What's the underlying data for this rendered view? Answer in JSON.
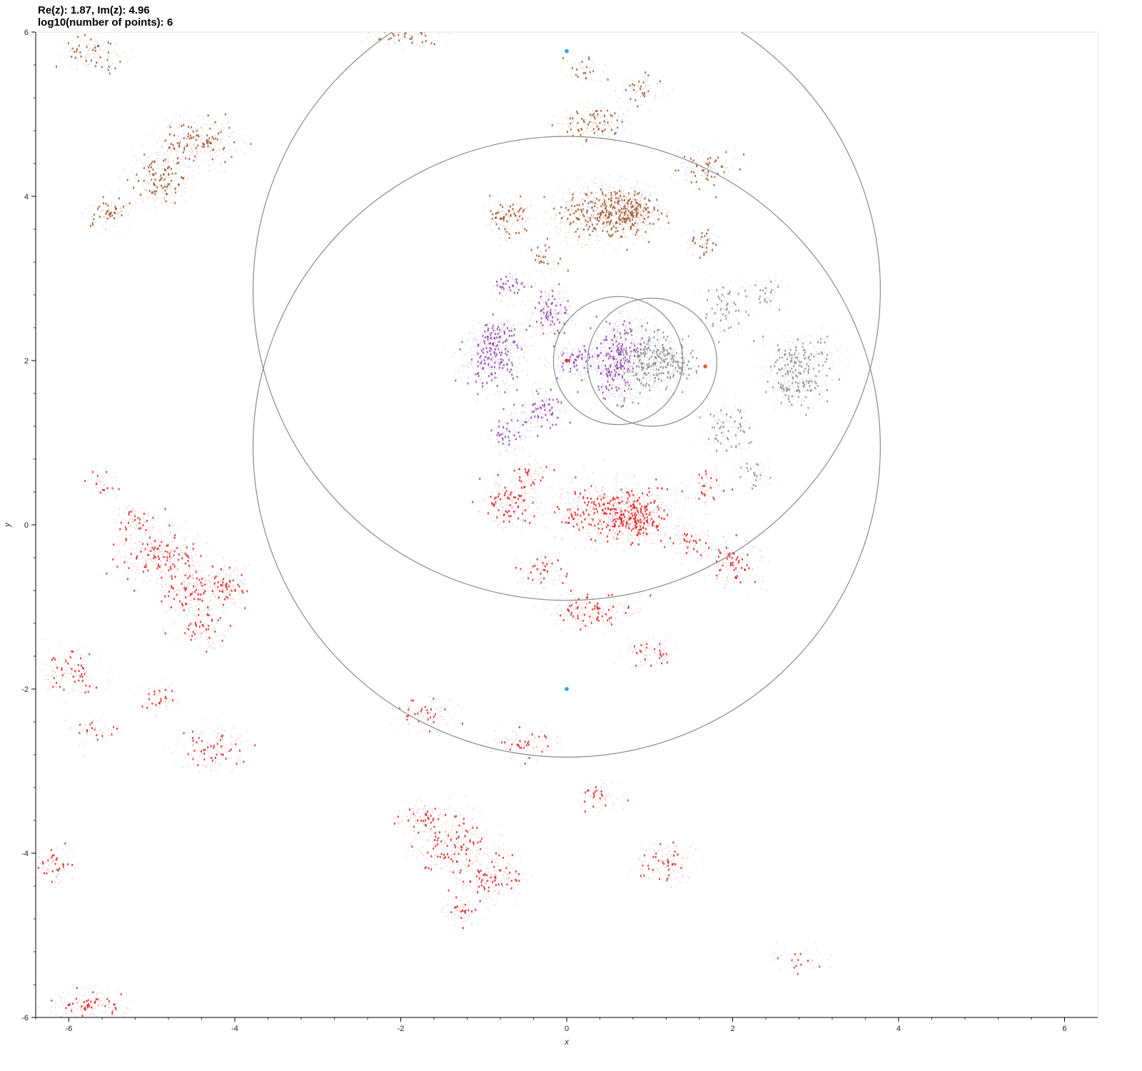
{
  "header": {
    "line1": "Re(z): 1.87, Im(z): 4.96",
    "line2": "log10(number of points): 6"
  },
  "chart_data": {
    "type": "scatter",
    "title": "",
    "xlabel": "x",
    "ylabel": "y",
    "xlim": [
      -6.4,
      6.4
    ],
    "ylim": [
      -6,
      6
    ],
    "x_ticks": [
      -6,
      -4,
      -2,
      0,
      2,
      4,
      6
    ],
    "y_ticks": [
      -6,
      -4,
      -2,
      0,
      2,
      4,
      6
    ],
    "x_tick_labels": [
      "-6",
      "-4",
      "-2",
      "0",
      "2",
      "4",
      "6"
    ],
    "y_tick_labels": [
      "-6",
      "-4",
      "-2",
      "0",
      "2",
      "4",
      "6"
    ],
    "grid": false,
    "legend": "none",
    "circles": [
      {
        "cx": 0.0,
        "cy": 2.86,
        "r": 3.78
      },
      {
        "cx": 0.0,
        "cy": 0.95,
        "r": 3.78
      },
      {
        "cx": 0.62,
        "cy": 2.0,
        "r": 0.78
      },
      {
        "cx": 1.03,
        "cy": 1.98,
        "r": 0.78
      }
    ],
    "markers": [
      {
        "x": 0.0,
        "y": 5.77,
        "color": "#1fa8d8"
      },
      {
        "x": 0.0,
        "y": -2.0,
        "color": "#1fa8d8"
      },
      {
        "x": 0.0,
        "y": 2.0,
        "color": "#e5342b"
      },
      {
        "x": 1.67,
        "y": 1.93,
        "color": "#e85a2a"
      }
    ],
    "series": [
      {
        "color": "#a0522d",
        "clusters": [
          {
            "x": 0.45,
            "y": 3.8,
            "w": 1.0,
            "h": 0.6,
            "n": 520
          },
          {
            "x": 0.8,
            "y": 3.78,
            "w": 0.5,
            "h": 0.4,
            "n": 260
          },
          {
            "x": -0.7,
            "y": 3.75,
            "w": 0.45,
            "h": 0.4,
            "n": 140
          },
          {
            "x": 0.35,
            "y": 4.88,
            "w": 0.7,
            "h": 0.35,
            "n": 150
          },
          {
            "x": 1.7,
            "y": 4.35,
            "w": 0.6,
            "h": 0.4,
            "n": 110
          },
          {
            "x": 1.65,
            "y": 3.45,
            "w": 0.35,
            "h": 0.3,
            "n": 60
          },
          {
            "x": 0.9,
            "y": 5.3,
            "w": 0.5,
            "h": 0.3,
            "n": 60
          },
          {
            "x": -4.45,
            "y": 4.65,
            "w": 0.8,
            "h": 0.5,
            "n": 230
          },
          {
            "x": -4.9,
            "y": 4.2,
            "w": 0.6,
            "h": 0.5,
            "n": 200
          },
          {
            "x": -5.5,
            "y": 3.8,
            "w": 0.45,
            "h": 0.35,
            "n": 90
          },
          {
            "x": -5.7,
            "y": 5.75,
            "w": 0.6,
            "h": 0.35,
            "n": 100
          },
          {
            "x": -1.9,
            "y": 5.95,
            "w": 0.8,
            "h": 0.2,
            "n": 70
          },
          {
            "x": -0.3,
            "y": 3.25,
            "w": 0.35,
            "h": 0.3,
            "n": 50
          },
          {
            "x": 0.2,
            "y": 5.55,
            "w": 0.4,
            "h": 0.3,
            "n": 40
          }
        ]
      },
      {
        "color": "#8e44ad",
        "clusters": [
          {
            "x": 0.6,
            "y": 2.0,
            "w": 0.55,
            "h": 0.8,
            "n": 470
          },
          {
            "x": -0.9,
            "y": 2.0,
            "w": 0.6,
            "h": 0.55,
            "n": 260
          },
          {
            "x": -0.85,
            "y": 2.3,
            "w": 0.45,
            "h": 0.35,
            "n": 150
          },
          {
            "x": -0.2,
            "y": 2.6,
            "w": 0.45,
            "h": 0.45,
            "n": 160
          },
          {
            "x": -0.3,
            "y": 1.4,
            "w": 0.45,
            "h": 0.45,
            "n": 140
          },
          {
            "x": -0.7,
            "y": 1.1,
            "w": 0.35,
            "h": 0.4,
            "n": 80
          },
          {
            "x": 0.1,
            "y": 2.0,
            "w": 0.5,
            "h": 0.3,
            "n": 120
          },
          {
            "x": -0.65,
            "y": 2.9,
            "w": 0.4,
            "h": 0.3,
            "n": 70
          }
        ]
      },
      {
        "color": "#8c8c8c",
        "clusters": [
          {
            "x": 1.0,
            "y": 2.0,
            "w": 0.55,
            "h": 0.7,
            "n": 430
          },
          {
            "x": 1.3,
            "y": 1.95,
            "w": 0.45,
            "h": 0.45,
            "n": 180
          },
          {
            "x": 2.8,
            "y": 2.0,
            "w": 0.8,
            "h": 0.55,
            "n": 290
          },
          {
            "x": 2.8,
            "y": 1.65,
            "w": 0.5,
            "h": 0.4,
            "n": 150
          },
          {
            "x": 1.9,
            "y": 1.2,
            "w": 0.5,
            "h": 0.55,
            "n": 130
          },
          {
            "x": 1.9,
            "y": 2.65,
            "w": 0.5,
            "h": 0.55,
            "n": 120
          },
          {
            "x": 2.45,
            "y": 2.8,
            "w": 0.35,
            "h": 0.35,
            "n": 50
          },
          {
            "x": 2.3,
            "y": 0.6,
            "w": 0.35,
            "h": 0.3,
            "n": 50
          }
        ]
      },
      {
        "color": "#e02020",
        "clusters": [
          {
            "x": 0.6,
            "y": 0.15,
            "w": 1.2,
            "h": 0.6,
            "n": 560
          },
          {
            "x": 0.8,
            "y": 0.05,
            "w": 0.5,
            "h": 0.4,
            "n": 220
          },
          {
            "x": -0.7,
            "y": 0.25,
            "w": 0.5,
            "h": 0.45,
            "n": 160
          },
          {
            "x": -0.4,
            "y": 0.6,
            "w": 0.4,
            "h": 0.3,
            "n": 60
          },
          {
            "x": 1.5,
            "y": -0.2,
            "w": 0.4,
            "h": 0.3,
            "n": 60
          },
          {
            "x": 0.3,
            "y": -1.05,
            "w": 0.8,
            "h": 0.35,
            "n": 160
          },
          {
            "x": -0.3,
            "y": -0.55,
            "w": 0.5,
            "h": 0.35,
            "n": 70
          },
          {
            "x": 2.0,
            "y": -0.45,
            "w": 0.6,
            "h": 0.5,
            "n": 120
          },
          {
            "x": 1.7,
            "y": 0.45,
            "w": 0.4,
            "h": 0.35,
            "n": 50
          },
          {
            "x": 1.0,
            "y": -1.55,
            "w": 0.5,
            "h": 0.3,
            "n": 60
          },
          {
            "x": -4.9,
            "y": -0.35,
            "w": 0.8,
            "h": 0.5,
            "n": 230
          },
          {
            "x": -4.45,
            "y": -0.8,
            "w": 0.8,
            "h": 0.45,
            "n": 210
          },
          {
            "x": -5.2,
            "y": 0.05,
            "w": 0.4,
            "h": 0.3,
            "n": 60
          },
          {
            "x": -4.1,
            "y": -0.7,
            "w": 0.4,
            "h": 0.35,
            "n": 60
          },
          {
            "x": -4.4,
            "y": -1.3,
            "w": 0.6,
            "h": 0.35,
            "n": 80
          },
          {
            "x": -5.95,
            "y": -1.8,
            "w": 0.6,
            "h": 0.45,
            "n": 110
          },
          {
            "x": -4.3,
            "y": -2.7,
            "w": 0.7,
            "h": 0.45,
            "n": 110
          },
          {
            "x": -4.9,
            "y": -2.1,
            "w": 0.4,
            "h": 0.3,
            "n": 50
          },
          {
            "x": -1.4,
            "y": -3.85,
            "w": 0.8,
            "h": 0.6,
            "n": 210
          },
          {
            "x": -0.9,
            "y": -4.3,
            "w": 0.6,
            "h": 0.5,
            "n": 150
          },
          {
            "x": -1.8,
            "y": -3.55,
            "w": 0.4,
            "h": 0.3,
            "n": 60
          },
          {
            "x": -0.5,
            "y": -2.65,
            "w": 0.6,
            "h": 0.3,
            "n": 70
          },
          {
            "x": -1.7,
            "y": -2.3,
            "w": 0.6,
            "h": 0.35,
            "n": 70
          },
          {
            "x": -6.2,
            "y": -4.15,
            "w": 0.4,
            "h": 0.4,
            "n": 70
          },
          {
            "x": -5.75,
            "y": -5.85,
            "w": 0.7,
            "h": 0.3,
            "n": 120
          },
          {
            "x": 1.2,
            "y": -4.1,
            "w": 0.6,
            "h": 0.45,
            "n": 90
          },
          {
            "x": 0.4,
            "y": -3.3,
            "w": 0.4,
            "h": 0.3,
            "n": 50
          },
          {
            "x": -1.25,
            "y": -4.7,
            "w": 0.4,
            "h": 0.3,
            "n": 50
          },
          {
            "x": -5.6,
            "y": 0.5,
            "w": 0.3,
            "h": 0.3,
            "n": 30
          },
          {
            "x": 2.8,
            "y": -5.3,
            "w": 0.6,
            "h": 0.3,
            "n": 30
          },
          {
            "x": -5.7,
            "y": -2.5,
            "w": 0.4,
            "h": 0.3,
            "n": 40
          }
        ]
      }
    ]
  }
}
